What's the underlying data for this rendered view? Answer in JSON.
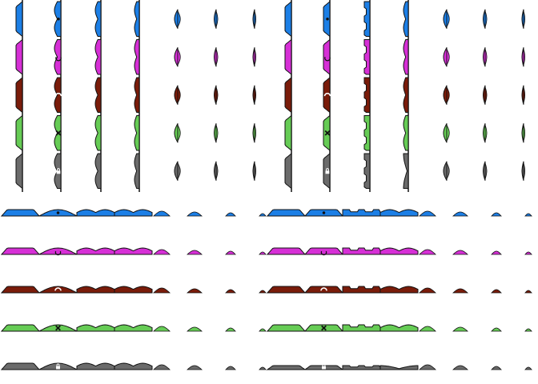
{
  "title": "",
  "background": "#ffffff",
  "outline_color": "#111111",
  "highlight_color": "#ffffff",
  "colors": {
    "blue": "#1c7fe6",
    "magenta": "#d62fd6",
    "maroon": "#7a1c0a",
    "green": "#66cc55",
    "gray": "#6b6b6b"
  },
  "row_order": [
    "blue",
    "magenta",
    "maroon",
    "green",
    "gray"
  ],
  "emblems": {
    "blue": "dot-icon",
    "magenta": "crescent-icon",
    "maroon": "arch-icon",
    "green": "x-icon",
    "gray": "lock-icon"
  },
  "blocks": [
    {
      "name": "vertical-rounded-bumps",
      "orientation": "vertical",
      "style": "rounded"
    },
    {
      "name": "vertical-angular-styles",
      "orientation": "vertical",
      "style": "angular"
    },
    {
      "name": "horizontal-rounded-bumps",
      "orientation": "horizontal",
      "style": "rounded"
    },
    {
      "name": "horizontal-angular-styles",
      "orientation": "horizontal",
      "style": "angular"
    }
  ],
  "scales_per_block": 7
}
